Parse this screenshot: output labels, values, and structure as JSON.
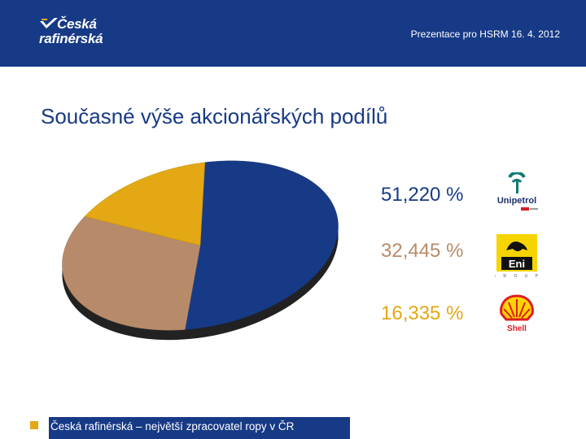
{
  "header": {
    "logo_line1": "Česká",
    "logo_line2": "rafinérská",
    "subtitle": "Prezentace pro HSRM 16. 4. 2012"
  },
  "page_title": "Současné výše akcionářských podílů",
  "colors": {
    "brand_blue": "#173a86",
    "tan": "#b78b6a",
    "yellow": "#e3a814"
  },
  "chart_data": {
    "type": "pie",
    "title": "",
    "slices": [
      {
        "label": "51,220 %",
        "value": 51.22,
        "color": "#173a86",
        "brand": "Unipetrol"
      },
      {
        "label": "32,445 %",
        "value": 32.445,
        "color": "#b78b6a",
        "brand": "Eni"
      },
      {
        "label": "16,335 %",
        "value": 16.335,
        "color": "#e3a814",
        "brand": "Shell"
      }
    ]
  },
  "brands": [
    {
      "name": "Unipetrol",
      "icon": "unipetrol-logo"
    },
    {
      "name": "Eni",
      "icon": "eni-logo"
    },
    {
      "name": "Shell",
      "icon": "shell-logo"
    }
  ],
  "footer": {
    "text": "Česká rafinérská – největší zpracovatel ropy v ČR"
  }
}
